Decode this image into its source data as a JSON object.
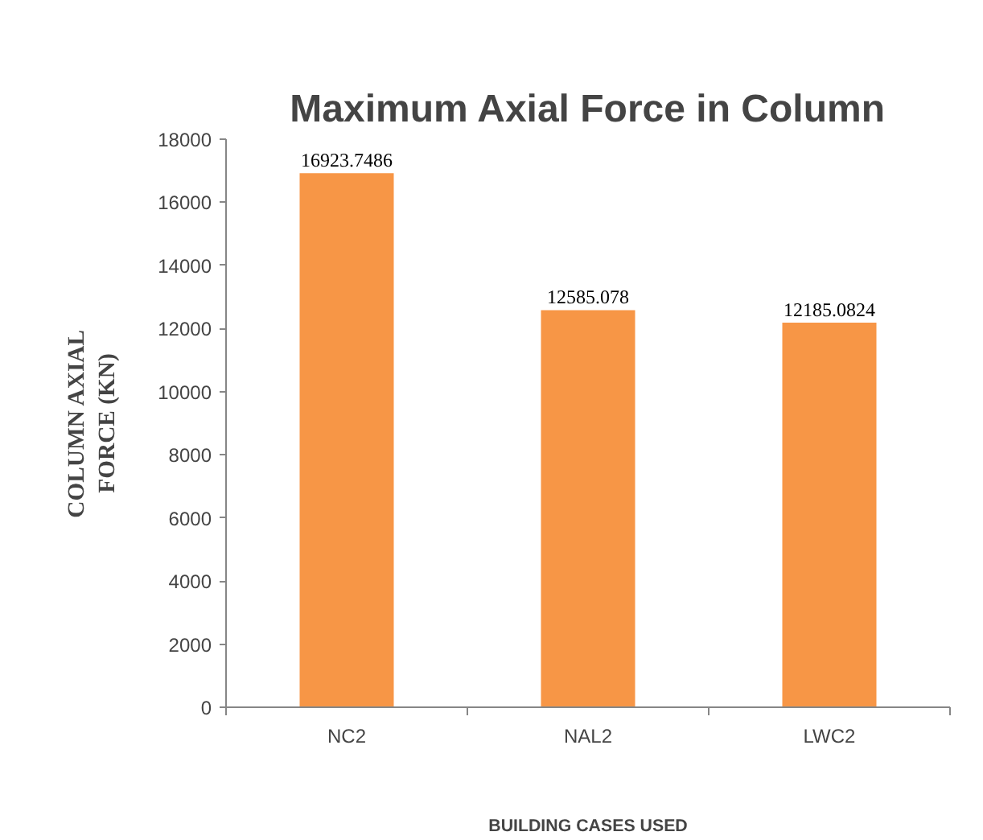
{
  "chart_data": {
    "type": "bar",
    "title": "Maximum Axial Force in Column",
    "xlabel": "BUILDING CASES USED",
    "ylabel": "COLUMN AXIAL FORCE (KN)",
    "categories": [
      "NC2",
      "NAL2",
      "LWC2"
    ],
    "values": [
      16923.7486,
      12585.078,
      12185.0824
    ],
    "color": "#f79646",
    "ylim": [
      0,
      18000
    ],
    "yticks": [
      0,
      2000,
      4000,
      6000,
      8000,
      10000,
      12000,
      14000,
      16000,
      18000
    ],
    "data_labels": true
  }
}
